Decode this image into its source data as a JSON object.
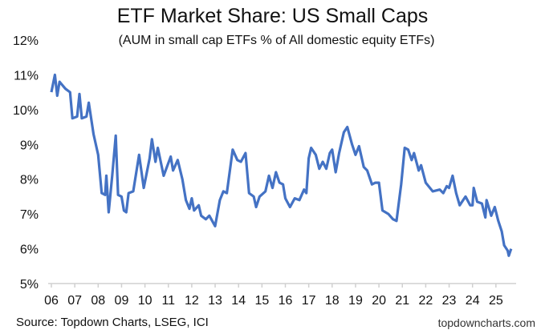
{
  "chart_data": {
    "type": "line",
    "title": "ETF Market Share: US Small Caps",
    "subtitle": "(AUM in small cap ETFs % of All domestic equity ETFs)",
    "xlabel": "",
    "ylabel": "",
    "ylim": [
      5,
      12
    ],
    "xlim": [
      2006,
      2025.7
    ],
    "y_ticks": [
      "5%",
      "6%",
      "7%",
      "8%",
      "9%",
      "10%",
      "11%",
      "12%"
    ],
    "x_ticks": [
      "06",
      "07",
      "08",
      "09",
      "10",
      "11",
      "12",
      "13",
      "14",
      "15",
      "16",
      "17",
      "18",
      "19",
      "20",
      "21",
      "22",
      "23",
      "24",
      "25"
    ],
    "grid": false,
    "line_color": "#4472C4",
    "series": [
      {
        "points": [
          [
            2006.0,
            10.5
          ],
          [
            2006.15,
            11.0
          ],
          [
            2006.25,
            10.4
          ],
          [
            2006.35,
            10.8
          ],
          [
            2006.6,
            10.6
          ],
          [
            2006.8,
            10.5
          ],
          [
            2006.9,
            9.75
          ],
          [
            2007.1,
            9.8
          ],
          [
            2007.2,
            10.45
          ],
          [
            2007.3,
            9.75
          ],
          [
            2007.5,
            9.8
          ],
          [
            2007.6,
            10.2
          ],
          [
            2007.8,
            9.3
          ],
          [
            2008.0,
            8.7
          ],
          [
            2008.15,
            7.6
          ],
          [
            2008.3,
            7.55
          ],
          [
            2008.35,
            8.1
          ],
          [
            2008.45,
            7.05
          ],
          [
            2008.6,
            8.1
          ],
          [
            2008.75,
            9.25
          ],
          [
            2008.85,
            7.55
          ],
          [
            2009.0,
            7.5
          ],
          [
            2009.1,
            7.1
          ],
          [
            2009.2,
            7.05
          ],
          [
            2009.3,
            7.6
          ],
          [
            2009.5,
            7.65
          ],
          [
            2009.75,
            8.7
          ],
          [
            2009.95,
            7.75
          ],
          [
            2010.2,
            8.6
          ],
          [
            2010.3,
            9.15
          ],
          [
            2010.45,
            8.5
          ],
          [
            2010.55,
            8.9
          ],
          [
            2010.8,
            8.1
          ],
          [
            2011.1,
            8.65
          ],
          [
            2011.2,
            8.25
          ],
          [
            2011.4,
            8.55
          ],
          [
            2011.6,
            8.0
          ],
          [
            2011.75,
            7.4
          ],
          [
            2011.9,
            7.15
          ],
          [
            2012.0,
            7.45
          ],
          [
            2012.1,
            7.1
          ],
          [
            2012.3,
            7.25
          ],
          [
            2012.4,
            6.95
          ],
          [
            2012.6,
            6.85
          ],
          [
            2012.75,
            6.95
          ],
          [
            2013.0,
            6.65
          ],
          [
            2013.2,
            7.4
          ],
          [
            2013.35,
            7.65
          ],
          [
            2013.5,
            7.6
          ],
          [
            2013.75,
            8.85
          ],
          [
            2013.95,
            8.55
          ],
          [
            2014.1,
            8.5
          ],
          [
            2014.3,
            8.75
          ],
          [
            2014.45,
            7.6
          ],
          [
            2014.65,
            7.5
          ],
          [
            2014.75,
            7.2
          ],
          [
            2014.9,
            7.5
          ],
          [
            2015.15,
            7.65
          ],
          [
            2015.3,
            8.1
          ],
          [
            2015.45,
            7.75
          ],
          [
            2015.6,
            8.2
          ],
          [
            2015.75,
            7.9
          ],
          [
            2015.9,
            7.85
          ],
          [
            2016.0,
            7.45
          ],
          [
            2016.2,
            7.2
          ],
          [
            2016.4,
            7.45
          ],
          [
            2016.6,
            7.4
          ],
          [
            2016.8,
            7.7
          ],
          [
            2016.9,
            7.6
          ],
          [
            2017.0,
            8.6
          ],
          [
            2017.1,
            8.9
          ],
          [
            2017.3,
            8.7
          ],
          [
            2017.45,
            8.3
          ],
          [
            2017.6,
            8.5
          ],
          [
            2017.75,
            8.3
          ],
          [
            2017.9,
            8.75
          ],
          [
            2018.0,
            8.85
          ],
          [
            2018.15,
            8.2
          ],
          [
            2018.3,
            8.75
          ],
          [
            2018.5,
            9.35
          ],
          [
            2018.65,
            9.5
          ],
          [
            2018.85,
            9.0
          ],
          [
            2019.0,
            8.7
          ],
          [
            2019.15,
            8.95
          ],
          [
            2019.35,
            8.35
          ],
          [
            2019.5,
            8.25
          ],
          [
            2019.7,
            7.85
          ],
          [
            2019.85,
            7.9
          ],
          [
            2020.0,
            7.9
          ],
          [
            2020.15,
            7.1
          ],
          [
            2020.4,
            7.0
          ],
          [
            2020.6,
            6.85
          ],
          [
            2020.75,
            6.8
          ],
          [
            2020.95,
            7.85
          ],
          [
            2021.1,
            8.9
          ],
          [
            2021.25,
            8.85
          ],
          [
            2021.4,
            8.55
          ],
          [
            2021.5,
            8.75
          ],
          [
            2021.7,
            8.25
          ],
          [
            2021.8,
            8.4
          ],
          [
            2022.0,
            7.9
          ],
          [
            2022.3,
            7.65
          ],
          [
            2022.6,
            7.7
          ],
          [
            2022.75,
            7.6
          ],
          [
            2022.9,
            7.8
          ],
          [
            2023.0,
            7.75
          ],
          [
            2023.15,
            8.1
          ],
          [
            2023.3,
            7.6
          ],
          [
            2023.45,
            7.25
          ],
          [
            2023.7,
            7.5
          ],
          [
            2023.9,
            7.25
          ],
          [
            2024.0,
            7.25
          ],
          [
            2024.05,
            7.75
          ],
          [
            2024.2,
            7.35
          ],
          [
            2024.4,
            7.3
          ],
          [
            2024.55,
            6.9
          ],
          [
            2024.6,
            7.4
          ],
          [
            2024.8,
            6.95
          ],
          [
            2024.95,
            7.2
          ],
          [
            2025.1,
            6.8
          ],
          [
            2025.25,
            6.5
          ],
          [
            2025.35,
            6.1
          ],
          [
            2025.5,
            5.95
          ],
          [
            2025.55,
            5.8
          ],
          [
            2025.65,
            6.0
          ]
        ]
      }
    ]
  },
  "source": "Source: Topdown Charts, LSEG, ICI",
  "brand": "topdowncharts.com"
}
